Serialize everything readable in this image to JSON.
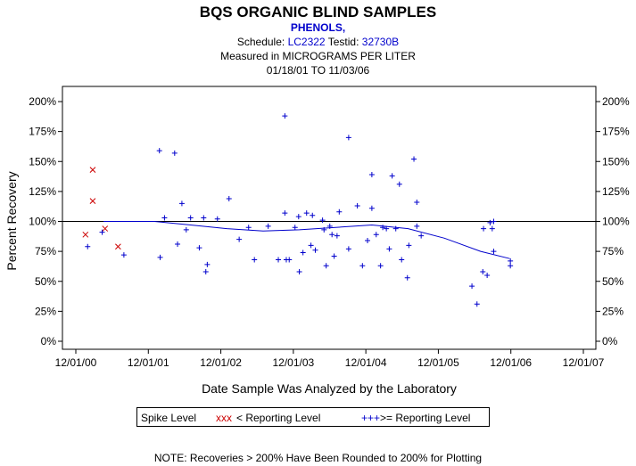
{
  "header": {
    "title": "BQS ORGANIC BLIND SAMPLES",
    "subtitle": "PHENOLS,",
    "schedule_label": "Schedule:",
    "schedule_value": "LC2322",
    "testid_label": "Testid:",
    "testid_value": "32730B",
    "measured": "Measured in  MICROGRAMS PER LITER",
    "date_range": "01/18/01 TO 11/03/06"
  },
  "legend": {
    "title": "Spike Level",
    "below_marker": "xxx",
    "below_label": "< Reporting Level",
    "above_marker": "+++",
    "above_label": ">= Reporting Level"
  },
  "footnote": "NOTE: Recoveries > 200% Have Been Rounded to 200% for Plotting",
  "colors": {
    "below": "#cc0000",
    "above": "#0000cc",
    "axis": "#000000"
  },
  "chart_data": {
    "type": "scatter",
    "xlabel": "Date Sample Was Analyzed by the Laboratory",
    "ylabel": "Percent Recovery",
    "x_ticks": [
      "12/01/00",
      "12/01/01",
      "12/01/02",
      "12/01/03",
      "12/01/04",
      "12/01/05",
      "12/01/06",
      "12/01/07"
    ],
    "y_ticks": [
      "0%",
      "25%",
      "50%",
      "75%",
      "100%",
      "125%",
      "150%",
      "175%",
      "200%"
    ],
    "xlim": [
      2000.917,
      2007.917
    ],
    "ylim": [
      0,
      200
    ],
    "reference_line": 100,
    "grid": false,
    "legend_position": "bottom",
    "series": [
      {
        "name": "< Reporting Level",
        "marker": "x",
        "points": [
          [
            2001.05,
            89
          ],
          [
            2001.15,
            143
          ],
          [
            2001.15,
            117
          ],
          [
            2001.32,
            94
          ],
          [
            2001.5,
            79
          ]
        ]
      },
      {
        "name": ">= Reporting Level",
        "marker": "+",
        "points": [
          [
            2001.08,
            79
          ],
          [
            2001.28,
            91
          ],
          [
            2001.58,
            72
          ],
          [
            2002.07,
            159
          ],
          [
            2002.08,
            70
          ],
          [
            2002.14,
            103
          ],
          [
            2002.28,
            157
          ],
          [
            2002.32,
            81
          ],
          [
            2002.38,
            115
          ],
          [
            2002.44,
            93
          ],
          [
            2002.5,
            103
          ],
          [
            2002.62,
            78
          ],
          [
            2002.68,
            103
          ],
          [
            2002.71,
            58
          ],
          [
            2002.73,
            64
          ],
          [
            2002.87,
            102
          ],
          [
            2003.03,
            119
          ],
          [
            2003.17,
            85
          ],
          [
            2003.3,
            95
          ],
          [
            2003.38,
            68
          ],
          [
            2003.57,
            96
          ],
          [
            2003.71,
            68
          ],
          [
            2003.8,
            188
          ],
          [
            2003.8,
            107
          ],
          [
            2003.82,
            68
          ],
          [
            2003.86,
            68
          ],
          [
            2003.94,
            95
          ],
          [
            2003.99,
            104
          ],
          [
            2004.0,
            58
          ],
          [
            2004.05,
            74
          ],
          [
            2004.1,
            107
          ],
          [
            2004.16,
            80
          ],
          [
            2004.18,
            105
          ],
          [
            2004.22,
            76
          ],
          [
            2004.32,
            101
          ],
          [
            2004.34,
            93
          ],
          [
            2004.37,
            63
          ],
          [
            2004.42,
            96
          ],
          [
            2004.45,
            89
          ],
          [
            2004.48,
            71
          ],
          [
            2004.52,
            88
          ],
          [
            2004.55,
            108
          ],
          [
            2004.68,
            170
          ],
          [
            2004.68,
            77
          ],
          [
            2004.8,
            113
          ],
          [
            2004.87,
            63
          ],
          [
            2004.94,
            84
          ],
          [
            2005.0,
            139
          ],
          [
            2005.0,
            111
          ],
          [
            2005.06,
            89
          ],
          [
            2005.12,
            63
          ],
          [
            2005.15,
            95
          ],
          [
            2005.2,
            94
          ],
          [
            2005.24,
            77
          ],
          [
            2005.28,
            138
          ],
          [
            2005.33,
            94
          ],
          [
            2005.38,
            131
          ],
          [
            2005.41,
            68
          ],
          [
            2005.49,
            53
          ],
          [
            2005.51,
            80
          ],
          [
            2005.58,
            152
          ],
          [
            2005.62,
            116
          ],
          [
            2005.62,
            96
          ],
          [
            2005.68,
            88
          ],
          [
            2006.38,
            46
          ],
          [
            2006.45,
            31
          ],
          [
            2006.53,
            58
          ],
          [
            2006.54,
            94
          ],
          [
            2006.59,
            55
          ],
          [
            2006.63,
            99
          ],
          [
            2006.66,
            94
          ],
          [
            2006.68,
            100
          ],
          [
            2006.68,
            75
          ],
          [
            2006.91,
            67
          ],
          [
            2006.91,
            63
          ]
        ]
      }
    ],
    "trend": {
      "name": "trend",
      "points": [
        [
          2001.3,
          100
        ],
        [
          2002.0,
          100
        ],
        [
          2002.5,
          97
        ],
        [
          2003.0,
          94
        ],
        [
          2003.5,
          92
        ],
        [
          2004.0,
          93
        ],
        [
          2004.5,
          95
        ],
        [
          2005.0,
          97
        ],
        [
          2005.5,
          94
        ],
        [
          2006.0,
          86
        ],
        [
          2006.5,
          75
        ],
        [
          2006.9,
          69
        ]
      ]
    }
  }
}
